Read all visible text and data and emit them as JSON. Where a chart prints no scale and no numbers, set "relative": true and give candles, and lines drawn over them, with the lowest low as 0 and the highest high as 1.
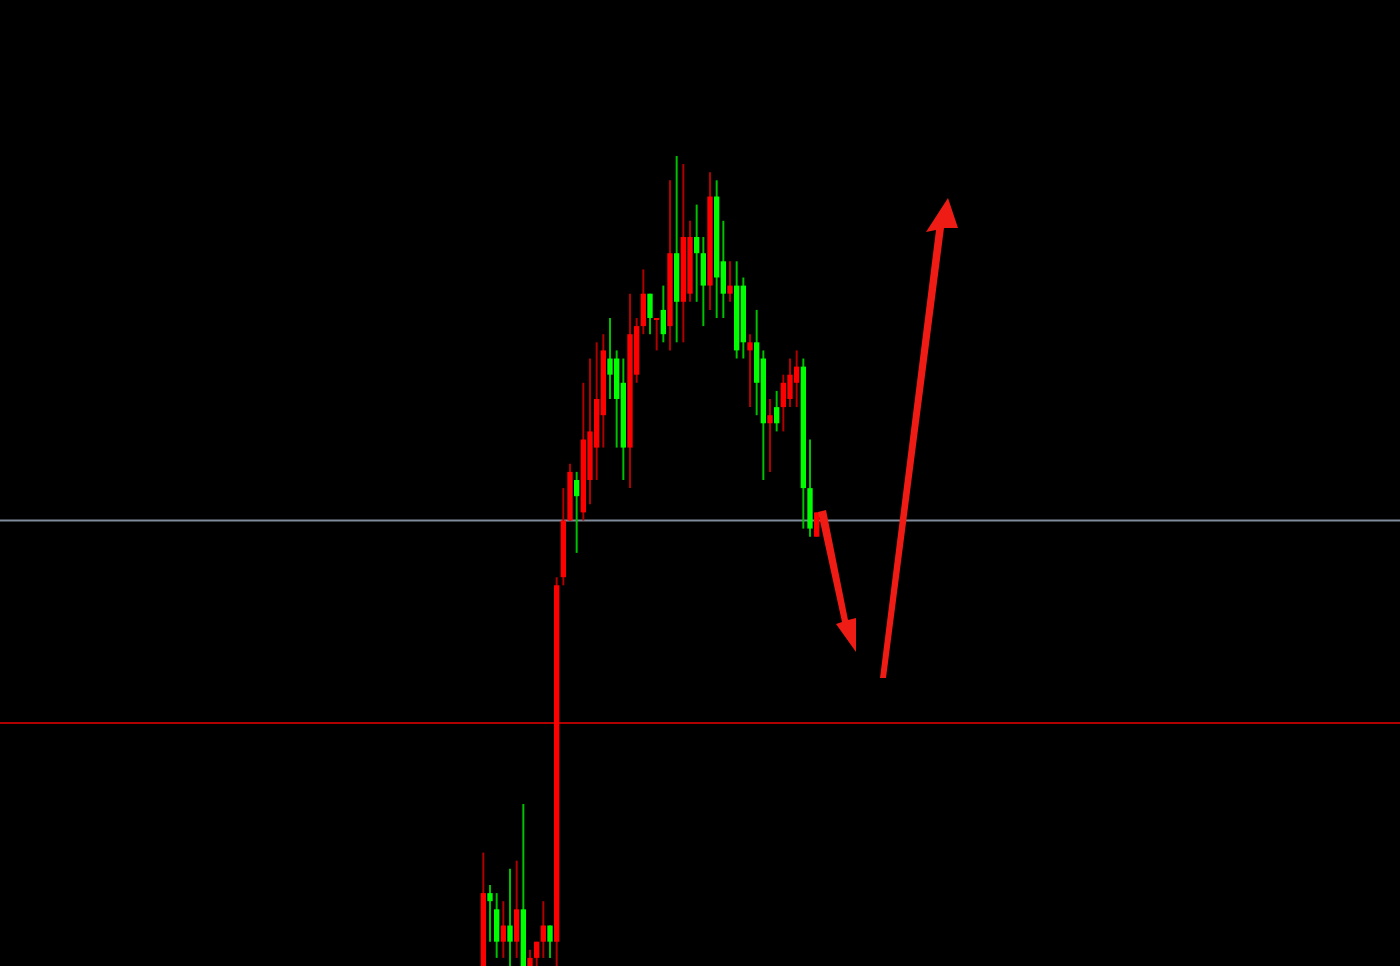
{
  "chart_data": {
    "type": "candlestick",
    "relative": true,
    "legend": false,
    "categories": [
      null,
      null,
      null,
      null,
      null,
      null,
      null,
      null,
      null,
      null,
      null,
      null,
      null,
      null,
      null,
      null,
      null,
      null,
      null,
      null,
      null,
      null,
      null,
      null,
      null,
      null,
      null,
      null,
      null,
      null,
      null,
      null,
      null,
      null,
      null,
      null,
      null,
      null,
      null,
      null,
      null,
      null,
      null,
      null,
      null,
      null,
      null,
      null,
      null,
      null,
      null,
      null,
      null,
      null,
      null,
      null,
      null,
      null,
      null,
      null,
      null,
      null,
      null,
      null,
      null,
      null,
      null,
      null,
      null,
      null,
      null,
      null,
      null,
      null,
      null,
      null,
      null,
      null,
      null,
      null,
      null,
      null,
      null,
      null,
      null,
      null,
      null,
      null,
      null,
      null,
      null,
      null,
      null,
      null,
      null,
      null,
      null,
      null,
      null,
      null,
      null,
      null,
      null,
      null,
      null,
      null,
      null,
      null,
      null,
      null,
      null,
      null,
      null,
      null,
      null,
      null,
      null,
      null,
      null,
      null,
      null,
      null,
      null,
      null,
      null,
      null,
      null,
      null,
      null,
      null,
      null,
      null,
      null,
      null,
      null,
      null,
      null,
      null,
      null,
      null,
      null,
      null,
      null,
      null,
      null,
      null,
      null,
      null,
      null,
      null,
      null,
      null,
      null,
      null,
      null,
      null,
      null,
      null,
      null,
      null,
      null,
      null,
      null,
      null,
      null,
      null,
      null,
      null,
      null,
      null,
      null,
      null,
      null,
      null,
      null,
      null,
      null,
      null,
      null,
      null,
      null,
      null,
      null,
      null,
      null,
      null,
      null,
      null,
      null,
      null,
      null,
      null,
      null,
      null,
      null,
      null,
      null,
      null,
      null,
      null,
      null,
      null,
      null,
      null,
      null,
      null,
      null,
      null,
      null,
      null
    ],
    "ohlc": [
      null,
      null,
      null,
      null,
      null,
      null,
      null,
      null,
      null,
      null,
      null,
      null,
      null,
      null,
      null,
      null,
      null,
      null,
      null,
      null,
      null,
      null,
      null,
      null,
      null,
      null,
      null,
      null,
      null,
      null,
      null,
      null,
      null,
      null,
      null,
      null,
      null,
      null,
      null,
      null,
      null,
      null,
      null,
      null,
      null,
      null,
      null,
      null,
      null,
      null,
      null,
      null,
      null,
      null,
      null,
      null,
      null,
      null,
      null,
      null,
      null,
      null,
      null,
      null,
      null,
      null,
      null,
      null,
      null,
      null,
      null,
      null,
      [
        0,
        0.14,
        0,
        0.09
      ],
      [
        0.09,
        0.1,
        0.03,
        0.08
      ],
      [
        0.07,
        0.09,
        0.01,
        0.03
      ],
      [
        0.03,
        0.08,
        0.01,
        0.05
      ],
      [
        0.05,
        0.12,
        0,
        0.03
      ],
      [
        0.03,
        0.13,
        0.01,
        0.07
      ],
      [
        0.07,
        0.2,
        0,
        0
      ],
      [
        0,
        0.02,
        0,
        0.01
      ],
      [
        0.01,
        0.03,
        0,
        0.03
      ],
      [
        0.03,
        0.08,
        0.01,
        0.05
      ],
      [
        0.05,
        0.05,
        0.01,
        0.03
      ],
      [
        0.03,
        0.48,
        0,
        0.47
      ],
      [
        0.48,
        0.59,
        0.47,
        0.55
      ],
      [
        0.55,
        0.62,
        0.55,
        0.61
      ],
      [
        0.6,
        0.61,
        0.51,
        0.58
      ],
      [
        0.56,
        0.72,
        0.55,
        0.65
      ],
      [
        0.6,
        0.75,
        0.57,
        0.66
      ],
      [
        0.64,
        0.77,
        0.6,
        0.7
      ],
      [
        0.68,
        0.78,
        0.64,
        0.76
      ],
      [
        0.75,
        0.8,
        0.7,
        0.73
      ],
      [
        0.75,
        0.76,
        0.64,
        0.7
      ],
      [
        0.72,
        0.75,
        0.6,
        0.64
      ],
      [
        0.64,
        0.83,
        0.59,
        0.78
      ],
      [
        0.73,
        0.8,
        0.72,
        0.79
      ],
      [
        0.79,
        0.86,
        0.78,
        0.83
      ],
      [
        0.83,
        0.83,
        0.78,
        0.8
      ],
      [
        0.8,
        0.8,
        0.76,
        0.8
      ],
      [
        0.81,
        0.84,
        0.77,
        0.78
      ],
      [
        0.79,
        0.97,
        0.76,
        0.88
      ],
      [
        0.88,
        1,
        0.77,
        0.82
      ],
      [
        0.82,
        0.99,
        0.77,
        0.9
      ],
      [
        0.83,
        0.92,
        0.82,
        0.9
      ],
      [
        0.9,
        0.94,
        0.82,
        0.88
      ],
      [
        0.88,
        0.9,
        0.79,
        0.84
      ],
      [
        0.84,
        0.98,
        0.81,
        0.95
      ],
      [
        0.95,
        0.97,
        0.8,
        0.85
      ],
      [
        0.87,
        0.92,
        0.8,
        0.83
      ],
      [
        0.83,
        0.87,
        0.82,
        0.84
      ],
      [
        0.84,
        0.87,
        0.75,
        0.76
      ],
      [
        0.84,
        0.85,
        0.75,
        0.77
      ],
      [
        0.76,
        0.78,
        0.69,
        0.77
      ],
      [
        0.77,
        0.81,
        0.68,
        0.72
      ],
      [
        0.75,
        0.76,
        0.6,
        0.67
      ],
      [
        0.67,
        0.7,
        0.61,
        0.68
      ],
      [
        0.69,
        0.71,
        0.66,
        0.67
      ],
      [
        0.69,
        0.73,
        0.66,
        0.72
      ],
      [
        0.7,
        0.75,
        0.69,
        0.73
      ],
      [
        0.72,
        0.76,
        0.69,
        0.74
      ],
      [
        0.74,
        0.75,
        0.54,
        0.59
      ],
      [
        0.59,
        0.65,
        0.53,
        0.54
      ],
      [
        0.53,
        0.56,
        0.53,
        0.56
      ],
      null,
      null,
      null,
      null,
      null,
      null,
      null,
      null,
      null,
      null,
      null,
      null,
      null,
      null,
      null,
      null,
      null,
      null,
      null,
      null,
      null,
      null,
      null,
      null,
      null,
      null,
      null,
      null,
      null,
      null,
      null,
      null,
      null,
      null,
      null,
      null,
      null,
      null,
      null,
      null,
      null,
      null,
      null,
      null,
      null,
      null,
      null,
      null,
      null,
      null,
      null,
      null,
      null,
      null,
      null,
      null,
      null,
      null,
      null,
      null,
      null,
      null,
      null,
      null,
      null,
      null,
      null,
      null,
      null,
      null,
      null,
      null,
      null,
      null,
      null,
      null,
      null,
      null,
      null,
      null,
      null,
      null,
      null,
      null,
      null,
      null,
      null
    ],
    "ref_lines": [
      {
        "axis": "y",
        "value": 0.55,
        "color": "#7f8c9c"
      },
      {
        "axis": "y",
        "value": 0.3,
        "color": "#b00000"
      }
    ]
  }
}
